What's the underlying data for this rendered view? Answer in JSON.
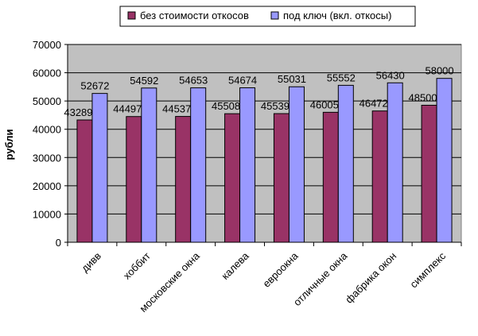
{
  "chart_data": {
    "type": "bar",
    "ylabel": "рубли",
    "xlabel": "",
    "ylim": [
      0,
      70000
    ],
    "yticks": [
      0,
      10000,
      20000,
      30000,
      40000,
      50000,
      60000,
      70000
    ],
    "grid": "horizontal",
    "legend_position": "top",
    "plot_background": "#c0c0c0",
    "categories": [
      "дивв",
      "хоббит",
      "московские окна",
      "калева",
      "евроокна",
      "отличные окна",
      "фабрика окон",
      "симплекс"
    ],
    "series": [
      {
        "name": "без стоимости откосов",
        "color": "#993366",
        "values": [
          43289,
          44497,
          44537,
          45508,
          45539,
          46005,
          46472,
          48500
        ]
      },
      {
        "name": "под ключ (вкл. откосы)",
        "color": "#9999ff",
        "values": [
          52672,
          54592,
          54653,
          54674,
          55031,
          55552,
          56430,
          58000
        ]
      }
    ]
  }
}
